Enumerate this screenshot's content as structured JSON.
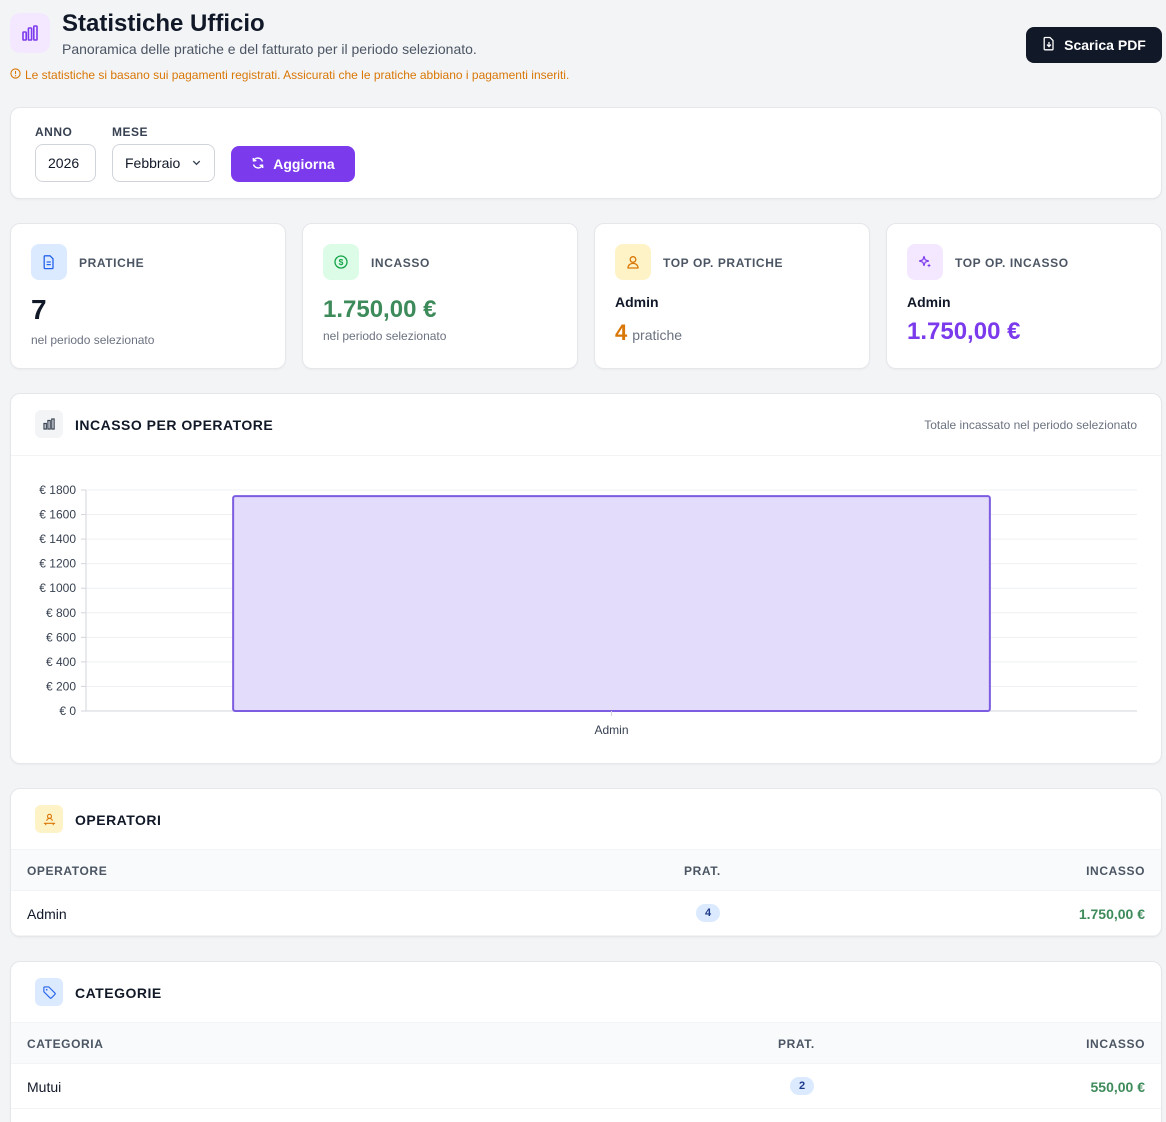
{
  "header": {
    "title": "Statistiche Ufficio",
    "subtitle": "Panoramica delle pratiche e del fatturato per il periodo selezionato.",
    "warning": "Le statistiche si basano sui pagamenti registrati. Assicurati che le pratiche abbiano i pagamenti inseriti.",
    "pdf_button": "Scarica PDF"
  },
  "filters": {
    "year_label": "ANNO",
    "year_value": "2026",
    "month_label": "MESE",
    "month_value": "Febbraio",
    "refresh_button": "Aggiorna"
  },
  "stats": {
    "pratiche": {
      "label": "PRATICHE",
      "value": "7",
      "note": "nel periodo selezionato"
    },
    "incasso": {
      "label": "INCASSO",
      "value": "1.750,00 €",
      "note": "nel periodo selezionato"
    },
    "top_pratiche": {
      "label": "TOP OP. PRATICHE",
      "name": "Admin",
      "count": "4",
      "unit": "pratiche"
    },
    "top_incasso": {
      "label": "TOP OP. INCASSO",
      "name": "Admin",
      "value": "1.750,00 €"
    }
  },
  "chart_section": {
    "title": "INCASSO PER OPERATORE",
    "note": "Totale incassato nel periodo selezionato"
  },
  "chart_data": {
    "type": "bar",
    "categories": [
      "Admin"
    ],
    "values": [
      1750
    ],
    "ylim": [
      0,
      1800
    ],
    "yticks": [
      0,
      200,
      400,
      600,
      800,
      1000,
      1200,
      1400,
      1600,
      1800
    ],
    "ytick_labels": [
      "€ 0",
      "€ 200",
      "€ 400",
      "€ 600",
      "€ 800",
      "€ 1000",
      "€ 1200",
      "€ 1400",
      "€ 1600",
      "€ 1800"
    ],
    "grid": true,
    "bar_fill": "#e4dcfb",
    "bar_stroke": "#7c5ce0"
  },
  "operatori": {
    "title": "OPERATORI",
    "columns": [
      "OPERATORE",
      "PRAT.",
      "INCASSO"
    ],
    "rows": [
      {
        "name": "Admin",
        "count": "4",
        "amount": "1.750,00 €"
      }
    ]
  },
  "categorie": {
    "title": "CATEGORIE",
    "columns": [
      "CATEGORIA",
      "PRAT.",
      "INCASSO"
    ],
    "rows": [
      {
        "name": "Mutui",
        "count": "2",
        "amount": "550,00 €"
      }
    ]
  },
  "colors": {
    "accent": "#7c3aed",
    "green": "#3d8b5a",
    "orange": "#d97706",
    "dark": "#111827"
  }
}
